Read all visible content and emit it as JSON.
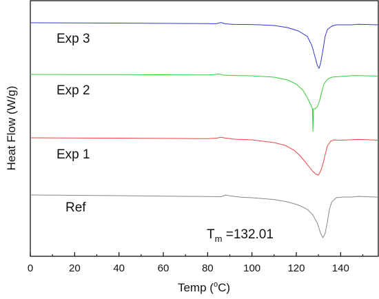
{
  "chart_data": {
    "type": "line",
    "xlabel": "Temp (",
    "xlabel_sup": "o",
    "xlabel_tail": "C)",
    "ylabel": "Heat Flow (W/g)",
    "xlim": [
      0,
      157
    ],
    "x_ticks": [
      0,
      20,
      40,
      60,
      80,
      100,
      120,
      140
    ],
    "y_ticks_shown": false,
    "grid": false,
    "annotation": {
      "main": "T",
      "sub": "m",
      "tail": " =132.01"
    },
    "series": [
      {
        "name": "Exp 3",
        "color": "#3333cc",
        "points": [
          [
            0,
            0
          ],
          [
            40,
            -0.5
          ],
          [
            80,
            -1.2
          ],
          [
            84,
            -1.4
          ],
          [
            86,
            0.4
          ],
          [
            88,
            -1.6
          ],
          [
            92,
            -2.4
          ],
          [
            100,
            -2.6
          ],
          [
            110,
            -4
          ],
          [
            116,
            -7
          ],
          [
            121,
            -12
          ],
          [
            125,
            -20
          ],
          [
            127,
            -33
          ],
          [
            128.5,
            -50
          ],
          [
            129.5,
            -62
          ],
          [
            130.3,
            -66
          ],
          [
            131,
            -58
          ],
          [
            132,
            -40
          ],
          [
            133,
            -20
          ],
          [
            134,
            -10
          ],
          [
            136,
            -5
          ],
          [
            138,
            -3
          ],
          [
            140,
            -3
          ],
          [
            145,
            -3
          ],
          [
            148,
            -2.3
          ],
          [
            157,
            -3
          ]
        ]
      },
      {
        "name": "Exp 2",
        "color": "#33cc33",
        "points": [
          [
            0,
            0
          ],
          [
            40,
            -0.3
          ],
          [
            80,
            -0.8
          ],
          [
            83,
            -0.2
          ],
          [
            85,
            0.7
          ],
          [
            87,
            -1
          ],
          [
            92,
            -1.6
          ],
          [
            100,
            -2
          ],
          [
            110,
            -4
          ],
          [
            116,
            -8
          ],
          [
            120,
            -14
          ],
          [
            123,
            -23
          ],
          [
            125,
            -34
          ],
          [
            126.5,
            -44
          ],
          [
            127.3,
            -50
          ],
          [
            127.5,
            -83
          ],
          [
            127.7,
            -50
          ],
          [
            128.5,
            -50
          ],
          [
            129.5,
            -47
          ],
          [
            130.5,
            -38
          ],
          [
            131.5,
            -25
          ],
          [
            132.5,
            -14
          ],
          [
            134,
            -7
          ],
          [
            136,
            -4
          ],
          [
            140,
            -3
          ],
          [
            146,
            -1.6
          ],
          [
            157,
            -2.5
          ]
        ]
      },
      {
        "name": "Exp 1",
        "color": "#ee4444",
        "points": [
          [
            0,
            0
          ],
          [
            40,
            -0.5
          ],
          [
            80,
            -1.3
          ],
          [
            84,
            -0.5
          ],
          [
            86,
            0.8
          ],
          [
            88,
            -0.4
          ],
          [
            92,
            -2
          ],
          [
            100,
            -3
          ],
          [
            110,
            -7
          ],
          [
            115,
            -11
          ],
          [
            119,
            -18
          ],
          [
            122,
            -27
          ],
          [
            124,
            -35
          ],
          [
            126,
            -43
          ],
          [
            127.5,
            -49
          ],
          [
            129,
            -53
          ],
          [
            130,
            -54
          ],
          [
            131,
            -48
          ],
          [
            132,
            -38
          ],
          [
            133,
            -25
          ],
          [
            134,
            -12
          ],
          [
            135.5,
            -5
          ],
          [
            137,
            -3
          ],
          [
            140,
            -3.5
          ],
          [
            145,
            -2.8
          ],
          [
            148,
            -2.3
          ],
          [
            157,
            -3.5
          ]
        ]
      },
      {
        "name": "Ref",
        "color": "#888888",
        "points": [
          [
            0,
            0
          ],
          [
            40,
            -1
          ],
          [
            80,
            -2.3
          ],
          [
            86,
            -2.6
          ],
          [
            88,
            0
          ],
          [
            90,
            -1.3
          ],
          [
            95,
            -3.3
          ],
          [
            100,
            -4
          ],
          [
            110,
            -6.6
          ],
          [
            116,
            -10
          ],
          [
            121,
            -14.6
          ],
          [
            125,
            -21
          ],
          [
            127.5,
            -29
          ],
          [
            129.5,
            -41
          ],
          [
            131,
            -56
          ],
          [
            132,
            -62
          ],
          [
            133,
            -56
          ],
          [
            134,
            -40
          ],
          [
            135,
            -20
          ],
          [
            136,
            -10
          ],
          [
            138,
            -4
          ],
          [
            141,
            -3
          ],
          [
            145,
            -3
          ],
          [
            148,
            -2
          ],
          [
            157,
            -3.3
          ]
        ]
      }
    ]
  }
}
